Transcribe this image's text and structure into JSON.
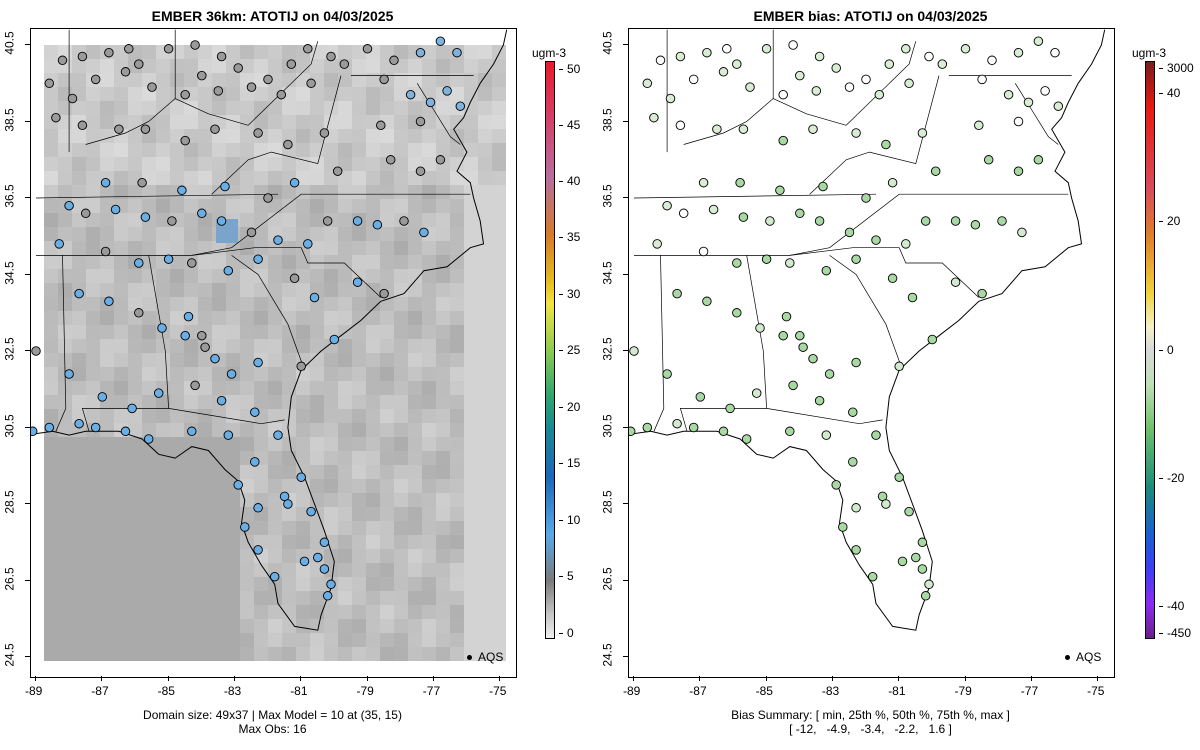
{
  "left": {
    "title": "EMBER 36km: ATOTIJ on 04/03/2025",
    "unit": "ugm-3",
    "colorbar_ticks": [
      "50",
      "45",
      "40",
      "35",
      "30",
      "25",
      "20",
      "15",
      "10",
      "5",
      "0"
    ],
    "x_ticks": [
      "-89",
      "-87",
      "-85",
      "-83",
      "-81",
      "-79",
      "-77",
      "-75"
    ],
    "y_ticks": [
      "40.5",
      "38.5",
      "36.5",
      "34.5",
      "32.5",
      "30.5",
      "28.5",
      "26.5",
      "24.5"
    ],
    "footer_line1": "Domain size: 49x37 | Max Model = 10 at (35, 15)",
    "footer_line2": "Max Obs: 16",
    "legend": "AQS"
  },
  "right": {
    "title": "EMBER bias: ATOTIJ on 04/03/2025",
    "unit": "ugm-3",
    "colorbar_ticks": [
      "3000",
      "40",
      "20",
      "0",
      "-20",
      "-40",
      "-450"
    ],
    "x_ticks": [
      "-89",
      "-87",
      "-85",
      "-83",
      "-81",
      "-79",
      "-77",
      "-75"
    ],
    "y_ticks": [
      "40.5",
      "38.5",
      "36.5",
      "34.5",
      "32.5",
      "30.5",
      "28.5",
      "26.5",
      "24.5"
    ],
    "footer_line1": "Bias Summary: [ min, 25th %, 50th %, 75th %, max ]",
    "footer_line2": "[ -12,   -4.9,   -3.4,   -2.2,   1.6 ]",
    "legend": "AQS"
  },
  "colors": {
    "obs_blue": "#6aaee6",
    "obs_gray": "#9a9a9a",
    "bias_green": "#a9d9a3",
    "bias_light": "#d4ead0",
    "model_dark": "#a8a8a8",
    "model_light": "#dcdcdc"
  }
}
